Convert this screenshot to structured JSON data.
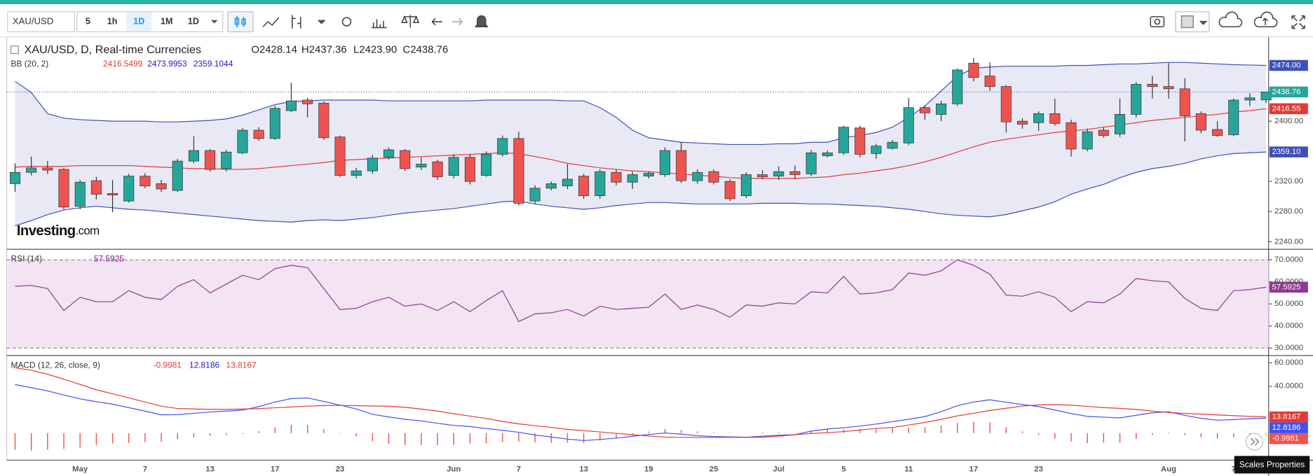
{
  "toolbar": {
    "symbol": "XAU/USD",
    "intervals": [
      "5",
      "1h",
      "1D",
      "1M",
      "1D"
    ]
  },
  "logo": {
    "name": "Investing",
    "suffix": ".com"
  },
  "tooltip": "Scales Properties",
  "chart_data": [
    {
      "type": "candlestick",
      "title": "XAU/USD, D, Real-time Currencies",
      "ohlc_legend": [
        "O2428.14",
        "H2437.36",
        "L2423.90",
        "C2438.76"
      ],
      "categories": [
        null,
        null,
        null,
        null,
        "May",
        null,
        null,
        null,
        "7",
        null,
        null,
        null,
        "13",
        null,
        null,
        null,
        "17",
        null,
        null,
        null,
        "23",
        null,
        null,
        null,
        null,
        null,
        null,
        "Jun",
        null,
        null,
        null,
        "7",
        null,
        null,
        null,
        "13",
        null,
        null,
        null,
        "19",
        null,
        null,
        null,
        "25",
        null,
        null,
        null,
        "Jul",
        null,
        null,
        null,
        "5",
        null,
        null,
        null,
        "11",
        null,
        null,
        null,
        "17",
        null,
        null,
        null,
        "23",
        null,
        null,
        null,
        null,
        null,
        null,
        null,
        "Aug",
        null,
        null,
        null,
        "7",
        null,
        null
      ],
      "open": [
        2317,
        2332,
        2338,
        2336,
        2287,
        2321,
        2304,
        2294,
        2327,
        2317,
        2308,
        2347,
        2361,
        2337,
        2358,
        2388,
        2377,
        2414,
        2428,
        2424,
        2379,
        2328,
        2334,
        2352,
        2361,
        2339,
        2346,
        2328,
        2352,
        2328,
        2356,
        2377,
        2294,
        2311,
        2314,
        2327,
        2301,
        2332,
        2319,
        2327,
        2329,
        2361,
        2321,
        2333,
        2320,
        2301,
        2329,
        2327,
        2333,
        2330,
        2354,
        2358,
        2391,
        2357,
        2364,
        2371,
        2418,
        2409,
        2423,
        2477,
        2460,
        2446,
        2400,
        2398,
        2410,
        2398,
        2363,
        2388,
        2383,
        2409,
        2449,
        2446,
        2443,
        2410,
        2389,
        2382,
        2428,
        2428.14
      ],
      "high": [
        2344,
        2353,
        2347,
        2338,
        2322,
        2326,
        2322,
        2330,
        2331,
        2322,
        2350,
        2380,
        2363,
        2362,
        2391,
        2392,
        2420,
        2451,
        2431,
        2426,
        2381,
        2338,
        2355,
        2365,
        2363,
        2352,
        2349,
        2356,
        2356,
        2360,
        2381,
        2386,
        2315,
        2320,
        2343,
        2330,
        2336,
        2336,
        2333,
        2333,
        2365,
        2372,
        2336,
        2336,
        2323,
        2332,
        2335,
        2340,
        2341,
        2362,
        2361,
        2394,
        2394,
        2370,
        2375,
        2431,
        2421,
        2427,
        2470,
        2484,
        2478,
        2448,
        2404,
        2413,
        2430,
        2402,
        2390,
        2392,
        2430,
        2452,
        2460,
        2477,
        2457,
        2413,
        2400,
        2430,
        2437,
        2437.36
      ],
      "low": [
        2306,
        2328,
        2330,
        2283,
        2283,
        2296,
        2279,
        2292,
        2311,
        2306,
        2306,
        2344,
        2333,
        2333,
        2356,
        2374,
        2375,
        2412,
        2405,
        2375,
        2326,
        2324,
        2330,
        2349,
        2334,
        2335,
        2322,
        2324,
        2316,
        2326,
        2353,
        2288,
        2290,
        2308,
        2310,
        2297,
        2297,
        2315,
        2310,
        2324,
        2326,
        2318,
        2317,
        2316,
        2294,
        2298,
        2323,
        2322,
        2323,
        2327,
        2352,
        2355,
        2352,
        2350,
        2362,
        2368,
        2402,
        2400,
        2420,
        2453,
        2440,
        2385,
        2390,
        2387,
        2394,
        2353,
        2360,
        2378,
        2379,
        2405,
        2430,
        2430,
        2373,
        2384,
        2379,
        2380,
        2420,
        2423.9
      ],
      "close": [
        2332,
        2338,
        2335,
        2286,
        2319,
        2303,
        2302,
        2327,
        2314,
        2310,
        2347,
        2361,
        2336,
        2359,
        2388,
        2377,
        2417,
        2427,
        2423,
        2378,
        2328,
        2334,
        2351,
        2362,
        2337,
        2343,
        2326,
        2352,
        2320,
        2356,
        2377,
        2291,
        2311,
        2317,
        2323,
        2301,
        2333,
        2319,
        2329,
        2331,
        2361,
        2321,
        2332,
        2319,
        2297,
        2329,
        2326,
        2333,
        2329,
        2358,
        2358,
        2392,
        2356,
        2367,
        2372,
        2418,
        2411,
        2423,
        2468,
        2458,
        2446,
        2399,
        2396,
        2410,
        2397,
        2363,
        2386,
        2381,
        2409,
        2449,
        2446,
        2443,
        2407,
        2388,
        2381,
        2428,
        2431,
        2438.76
      ],
      "up_color": "#26a69a",
      "down_color": "#ef5350",
      "indicator": "BB (20, 2)",
      "series": [
        {
          "color": "#e53935",
          "value_label": "2416.5499",
          "values": [
            2339,
            2340,
            2340,
            2340,
            2341,
            2341,
            2341,
            2341,
            2340,
            2339,
            2338,
            2337,
            2337,
            2336,
            2336,
            2337,
            2339,
            2341,
            2343,
            2345,
            2348,
            2349,
            2350,
            2351,
            2352,
            2353,
            2354,
            2355,
            2356,
            2357,
            2358,
            2357,
            2353,
            2349,
            2344,
            2341,
            2338,
            2336,
            2334,
            2333,
            2331,
            2330,
            2328,
            2327,
            2325,
            2324,
            2324,
            2324,
            2324,
            2325,
            2326,
            2329,
            2331,
            2334,
            2337,
            2341,
            2346,
            2352,
            2359,
            2366,
            2372,
            2376,
            2379,
            2382,
            2385,
            2387,
            2389,
            2392,
            2395,
            2398,
            2401,
            2403,
            2405,
            2407,
            2409,
            2412,
            2414,
            2416.5499
          ]
        },
        {
          "color": "#3f51b5",
          "value_label": "2473.9953",
          "values": [
            2453,
            2438,
            2410,
            2404,
            2402,
            2401,
            2400,
            2400,
            2400,
            2399,
            2399,
            2400,
            2401,
            2403,
            2408,
            2415,
            2422,
            2426,
            2427,
            2428,
            2428,
            2428,
            2428,
            2427,
            2427,
            2427,
            2427,
            2427,
            2427,
            2428,
            2428,
            2428,
            2428,
            2428,
            2427,
            2427,
            2418,
            2405,
            2388,
            2378,
            2375,
            2372,
            2371,
            2370,
            2369,
            2369,
            2369,
            2370,
            2370,
            2372,
            2372,
            2378,
            2381,
            2385,
            2392,
            2405,
            2420,
            2440,
            2460,
            2470,
            2472,
            2473,
            2473,
            2473,
            2473,
            2474,
            2474,
            2475,
            2476,
            2476,
            2477,
            2478,
            2478,
            2477,
            2476,
            2475,
            2474.5,
            2473.9953
          ]
        },
        {
          "color": "#3f51b5",
          "value_label": "2359.1044",
          "values": [
            2261,
            2268,
            2276,
            2282,
            2285,
            2287,
            2285,
            2283,
            2282,
            2280,
            2278,
            2276,
            2274,
            2272,
            2270,
            2268,
            2267,
            2266,
            2268,
            2269,
            2268,
            2270,
            2272,
            2275,
            2278,
            2280,
            2282,
            2284,
            2287,
            2290,
            2293,
            2294,
            2290,
            2287,
            2285,
            2283,
            2285,
            2288,
            2290,
            2292,
            2292,
            2291,
            2290,
            2290,
            2290,
            2290,
            2291,
            2291,
            2291,
            2290,
            2290,
            2289,
            2288,
            2287,
            2285,
            2283,
            2280,
            2277,
            2275,
            2274,
            2273,
            2276,
            2281,
            2286,
            2293,
            2303,
            2310,
            2316,
            2325,
            2332,
            2337,
            2340,
            2344,
            2350,
            2354,
            2357,
            2358,
            2359.1044
          ]
        }
      ],
      "band_fill": "#e8e9f5",
      "ylim": [
        2231,
        2512
      ],
      "yticks": [
        {
          "value": 2240,
          "label": "2240.00"
        },
        {
          "value": 2280,
          "label": "2280.00"
        },
        {
          "value": 2320,
          "label": "2320.00"
        },
        {
          "value": 2400,
          "label": "2400.00"
        }
      ],
      "price_tags": [
        {
          "value": 2473.9953,
          "label": "2474.00",
          "color": "#3f51b5"
        },
        {
          "value": 2438.76,
          "label": "2438.76",
          "color": "#26a69a"
        },
        {
          "value": 2416.5499,
          "label": "2416.55",
          "color": "#e53935"
        },
        {
          "value": 2359.1044,
          "label": "2359.10",
          "color": "#3f51b5"
        }
      ]
    },
    {
      "type": "line",
      "title": "RSI (14)",
      "value_label": "57.5925",
      "color": "#8e3a8e",
      "values": [
        58,
        58.4,
        57,
        47,
        53,
        51,
        51,
        56,
        53,
        52,
        58,
        61,
        55,
        59,
        63,
        61,
        66,
        67.5,
        66.5,
        57,
        47.5,
        48,
        51,
        53,
        49,
        50,
        47,
        51,
        46.5,
        51.5,
        56,
        42,
        45.5,
        46,
        47.5,
        44.5,
        49,
        47.5,
        48,
        48.5,
        54.5,
        47.5,
        49.5,
        47.5,
        44,
        49.5,
        49,
        50.5,
        50,
        55.5,
        55,
        62.5,
        54.5,
        55,
        56.5,
        64,
        63,
        65,
        70,
        67.5,
        63.5,
        54,
        53.5,
        55.5,
        53,
        46.5,
        51,
        50.5,
        54.5,
        61.5,
        60.5,
        60,
        52.5,
        48,
        47,
        56,
        56.5,
        57.5925
      ],
      "band": [
        30,
        70
      ],
      "band_color": "#f3e3f3",
      "ylim": [
        27,
        74
      ],
      "yticks": [
        {
          "value": 30,
          "label": "30.0000"
        },
        {
          "value": 40,
          "label": "40.0000"
        },
        {
          "value": 50,
          "label": "50.0000"
        },
        {
          "value": 60,
          "label": "60.0000"
        },
        {
          "value": 70,
          "label": "70.0000"
        }
      ]
    },
    {
      "type": "macd",
      "title": "MACD (12, 26, close, 9)",
      "series": [
        {
          "style": "histogram",
          "color": "#ef5350",
          "value_label": "-0.9981",
          "values": [
            -14.3,
            -14.9,
            -14.2,
            -13.5,
            -12.3,
            -10.2,
            -8.8,
            -8.3,
            -7.7,
            -7.4,
            -5.3,
            -3.7,
            -2.3,
            -1.5,
            -0.9,
            1.7,
            4.9,
            7.1,
            7,
            3.5,
            0.3,
            -2.8,
            -7.1,
            -9.1,
            -10.2,
            -10.1,
            -10.4,
            -9.9,
            -8.9,
            -8.6,
            -7.6,
            -7.2,
            -7.9,
            -8.2,
            -8.3,
            -8.4,
            -6.4,
            -4.1,
            -1.3,
            1.3,
            3.5,
            2.7,
            1.4,
            0.7,
            0.4,
            0.1,
            0.8,
            0.8,
            0.1,
            2,
            3.1,
            3.3,
            3.4,
            3.7,
            5,
            4.9,
            5,
            6.6,
            8.7,
            9.6,
            9.1,
            5.1,
            1.4,
            -1.5,
            -4.6,
            -7.1,
            -8.5,
            -8.2,
            -8.1,
            -5,
            -1.5,
            0.6,
            -1.7,
            -3.6,
            -4.5,
            -3.4,
            -2,
            -0.9981
          ]
        },
        {
          "style": "line",
          "color": "#3f51f5",
          "value_label": "12.8186",
          "values": [
            41.4,
            38.7,
            36,
            32.5,
            29.2,
            26.8,
            24.7,
            21.7,
            18.8,
            15.6,
            15.7,
            16.9,
            18,
            18.8,
            19.6,
            22.6,
            26.5,
            29.4,
            30,
            27,
            23.9,
            20.6,
            16,
            13.8,
            11.8,
            10.4,
            8.4,
            6.6,
            5.6,
            3.9,
            2.4,
            0.7,
            -1.6,
            -3.3,
            -5.1,
            -6.3,
            -5.4,
            -4.3,
            -2.7,
            -1.2,
            0.1,
            -0.9,
            -2.2,
            -2.9,
            -3.2,
            -3.5,
            -2.7,
            -1.8,
            -1.3,
            1.7,
            3.5,
            4.6,
            6,
            7.7,
            9.8,
            11.8,
            14.1,
            18.3,
            23.4,
            26.5,
            28.4,
            26.3,
            24.4,
            22.6,
            19.7,
            16.7,
            14.3,
            13.6,
            13,
            15.2,
            17.3,
            18.2,
            15.1,
            12.6,
            11,
            11.5,
            12.3,
            12.8186
          ]
        },
        {
          "style": "line",
          "color": "#e53935",
          "value_label": "13.8167",
          "values": [
            55.7,
            53.6,
            50.2,
            46,
            41.5,
            37,
            33.5,
            30,
            26.5,
            23,
            21,
            20.6,
            20.3,
            20.3,
            20.5,
            20.9,
            21.6,
            22.3,
            23,
            23.5,
            23.6,
            23.4,
            23.1,
            22.9,
            22,
            20.5,
            18.8,
            16.5,
            14.5,
            12.5,
            10,
            7.9,
            6.3,
            4.9,
            3.2,
            2.1,
            1,
            -0.2,
            -1.4,
            -2.5,
            -3.4,
            -3.6,
            -3.6,
            -3.6,
            -3.6,
            -3.6,
            -3.5,
            -2.6,
            -1.4,
            -0.3,
            0.4,
            1.3,
            2.6,
            4,
            4.8,
            6.9,
            9.1,
            11.7,
            14.7,
            16.9,
            19.3,
            21.2,
            23,
            24.1,
            24.3,
            23.8,
            22.8,
            21.8,
            21.1,
            20.2,
            18.8,
            17.6,
            16.8,
            16.2,
            15.5,
            14.9,
            14.3,
            13.8167
          ]
        }
      ],
      "ylim": [
        -23,
        64
      ],
      "yticks": [
        {
          "value": 40,
          "label": "40.0000"
        },
        {
          "value": 60,
          "label": "60.0000"
        }
      ]
    }
  ]
}
